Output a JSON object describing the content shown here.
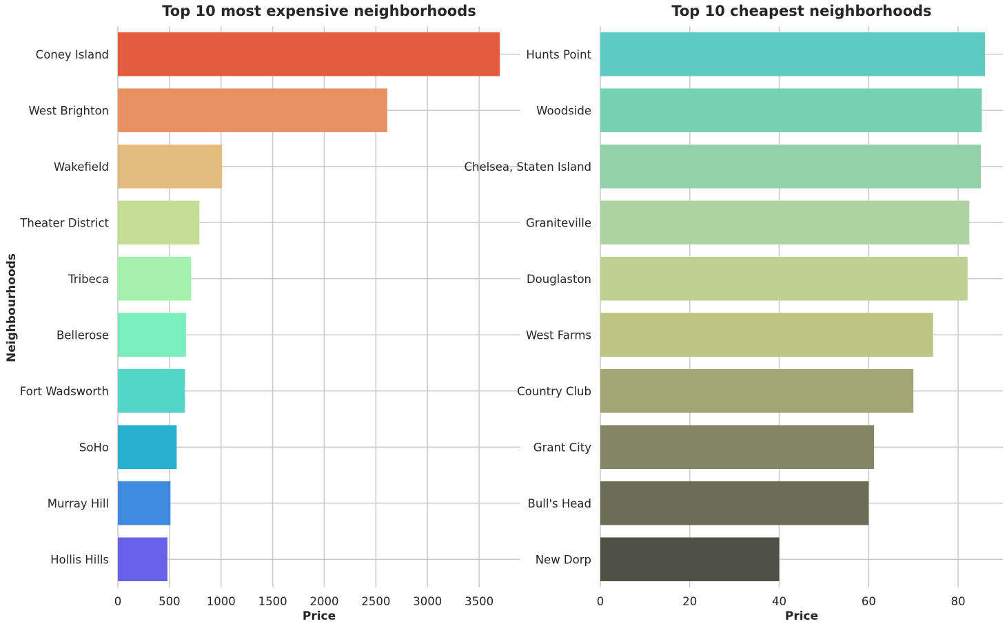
{
  "figure": {
    "ylabel": "Neighbourhoods"
  },
  "chart_data": [
    {
      "type": "bar",
      "orientation": "horizontal",
      "title": "Top 10 most expensive neighborhoods",
      "xlabel": "Price",
      "ylabel": "Neighbourhoods",
      "categories": [
        "Coney Island",
        "West Brighton",
        "Wakefield",
        "Theater District",
        "Tribeca",
        "Bellerose",
        "Fort Wadsworth",
        "SoHo",
        "Murray Hill",
        "Hollis Hills"
      ],
      "values": [
        3700,
        2610,
        1010,
        790,
        710,
        660,
        650,
        570,
        510,
        480
      ],
      "colors": [
        "#e45c3e",
        "#e89160",
        "#e3bb7a",
        "#c3dd95",
        "#a3f1ad",
        "#7beebe",
        "#53d5c7",
        "#27b0cf",
        "#3e8ade",
        "#6760ea"
      ],
      "xlim": [
        0,
        3900
      ],
      "xticks": [
        0,
        500,
        1000,
        1500,
        2000,
        2500,
        3000,
        3500
      ],
      "grid": true
    },
    {
      "type": "bar",
      "orientation": "horizontal",
      "title": "Top 10 cheapest neighborhoods",
      "xlabel": "Price",
      "ylabel": "",
      "categories": [
        "Hunts Point",
        "Woodside",
        "Chelsea, Staten Island",
        "Graniteville",
        "Douglaston",
        "West Farms",
        "Country Club",
        "Grant City",
        "Bull's Head",
        "New Dorp"
      ],
      "values": [
        86,
        85.3,
        85.1,
        82.5,
        82.1,
        74.4,
        70,
        61.2,
        60,
        40
      ],
      "colors": [
        "#5ccac1",
        "#78d0b3",
        "#93d1a8",
        "#afd3a0",
        "#bfd092",
        "#bec483",
        "#a2a673",
        "#838664",
        "#6a6c54",
        "#4e5044"
      ],
      "xlim": [
        0,
        90
      ],
      "xticks": [
        0,
        20,
        40,
        60,
        80
      ],
      "grid": true
    }
  ]
}
